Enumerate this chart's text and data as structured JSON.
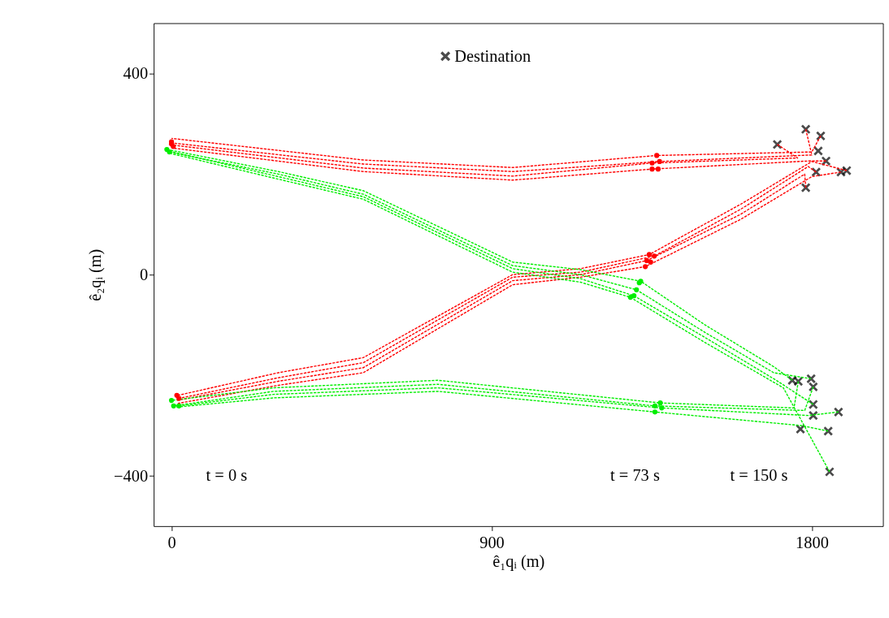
{
  "chart_data": {
    "type": "line",
    "xlabel": "ê₁qᵢ (m)",
    "ylabel": "ê₂qᵢ (m)",
    "xlim": [
      -50,
      2000
    ],
    "ylim": [
      -500,
      500
    ],
    "xticks": [
      0,
      900,
      1800
    ],
    "yticks": [
      -400,
      0,
      400
    ],
    "grid": false,
    "legend": "top",
    "line_style": "dashed",
    "annotations": [
      "t = 0 s",
      "t = 73 s",
      "t = 150 s"
    ],
    "series": [
      {
        "color": "#ff0000",
        "x": [
          0,
          539,
          959,
          1364,
          1800,
          1825
        ],
        "values": [
          271,
          228,
          213,
          237,
          244,
          276
        ]
      },
      {
        "color": "#ff0000",
        "x": [
          0,
          539,
          959,
          1372,
          1800,
          1783
        ],
        "values": [
          262,
          220,
          205,
          225,
          238,
          289
        ]
      },
      {
        "color": "#ff0000",
        "x": [
          0,
          539,
          959,
          1351,
          1760,
          1703
        ],
        "values": [
          258,
          212,
          196,
          222,
          232,
          259
        ]
      },
      {
        "color": "#ff0000",
        "x": [
          0,
          539,
          959,
          1351,
          1790,
          1840
        ],
        "values": [
          252,
          205,
          188,
          210,
          226,
          226
        ]
      },
      {
        "color": "#ff0000",
        "x": [
          18,
          300,
          539,
          959,
          1150,
          1343,
          1600,
          1800,
          1898
        ],
        "values": [
          -240,
          -195,
          -165,
          0,
          12,
          40,
          140,
          225,
          207
        ]
      },
      {
        "color": "#ff0000",
        "x": [
          21,
          300,
          539,
          959,
          1150,
          1357,
          1600,
          1790,
          1812
        ],
        "values": [
          -246,
          -205,
          -175,
          -5,
          5,
          37,
          130,
          215,
          204
        ]
      },
      {
        "color": "#ff0000",
        "x": [
          15,
          300,
          539,
          959,
          1150,
          1336,
          1600,
          1780,
          1783
        ],
        "values": [
          -250,
          -212,
          -185,
          -12,
          0,
          28,
          120,
          200,
          173
        ]
      },
      {
        "color": "#ff0000",
        "x": [
          18,
          300,
          539,
          959,
          1150,
          1332,
          1600,
          1800,
          1882
        ],
        "values": [
          -256,
          -220,
          -195,
          -20,
          -5,
          16,
          110,
          195,
          204
        ]
      },
      {
        "color": "#00ee00",
        "x": [
          -13,
          300,
          539,
          959,
          1150,
          1319,
          1500,
          1693,
          1745
        ],
        "values": [
          249,
          205,
          167,
          25,
          10,
          -13,
          -100,
          -183,
          -210
        ]
      },
      {
        "color": "#00ee00",
        "x": [
          -6,
          300,
          539,
          959,
          1150,
          1307,
          1500,
          1693,
          1798
        ],
        "values": [
          244,
          200,
          160,
          18,
          0,
          -30,
          -115,
          -195,
          -207
        ]
      },
      {
        "color": "#00ee00",
        "x": [
          -10,
          300,
          539,
          959,
          1150,
          1300,
          1500,
          1700,
          1804
        ],
        "values": [
          246,
          195,
          155,
          12,
          -8,
          -42,
          -125,
          -210,
          -258
        ]
      },
      {
        "color": "#00ee00",
        "x": [
          -8,
          300,
          539,
          959,
          1150,
          1290,
          1500,
          1720,
          1850
        ],
        "values": [
          242,
          190,
          150,
          5,
          -15,
          -45,
          -135,
          -225,
          -392
        ]
      },
      {
        "color": "#00ee00",
        "x": [
          0,
          287,
          749,
          1374,
          1750,
          1762
        ],
        "values": [
          -250,
          -225,
          -210,
          -255,
          -265,
          -212
        ]
      },
      {
        "color": "#00ee00",
        "x": [
          6,
          287,
          749,
          1359,
          1780,
          1804
        ],
        "values": [
          -261,
          -232,
          -218,
          -261,
          -270,
          -223
        ]
      },
      {
        "color": "#00ee00",
        "x": [
          21,
          287,
          749,
          1378,
          1790,
          1875
        ],
        "values": [
          -261,
          -238,
          -225,
          -265,
          -280,
          -273
        ]
      },
      {
        "color": "#00ee00",
        "x": [
          3,
          287,
          749,
          1359,
          1770,
          1846
        ],
        "values": [
          -264,
          -245,
          -232,
          -273,
          -300,
          -311
        ]
      },
      {
        "type": "scatter",
        "marker": "circle",
        "color": "#ff0000",
        "x": [
          0,
          0,
          5,
          15,
          21,
          1364,
          1372,
          1351,
          1351,
          1368,
          1343,
          1357,
          1336,
          1347,
          1332
        ],
        "values": [
          264,
          260,
          255,
          -240,
          -246,
          237,
          225,
          222,
          210,
          210,
          40,
          37,
          28,
          25,
          16
        ]
      },
      {
        "type": "scatter",
        "marker": "circle",
        "color": "#00ee00",
        "x": [
          -13,
          -6,
          0,
          6,
          21,
          1315,
          1307,
          1300,
          1290,
          1319,
          1374,
          1359,
          1378,
          1359
        ],
        "values": [
          249,
          244,
          -250,
          -261,
          -261,
          -16,
          -30,
          -42,
          -45,
          -13,
          -255,
          -261,
          -265,
          -273
        ]
      },
      {
        "type": "scatter",
        "marker": "cross",
        "name": "Destination",
        "color": "#000000",
        "x": [
          1703,
          1783,
          1825,
          1818,
          1840,
          1812,
          1783,
          1882,
          1898,
          1745,
          1762,
          1798,
          1804,
          1804,
          1804,
          1875,
          1768,
          1846,
          1850
        ],
        "values": [
          259,
          289,
          276,
          246,
          226,
          204,
          173,
          204,
          207,
          -210,
          -212,
          -207,
          -223,
          -258,
          -280,
          -273,
          -307,
          -311,
          -392
        ]
      }
    ]
  }
}
